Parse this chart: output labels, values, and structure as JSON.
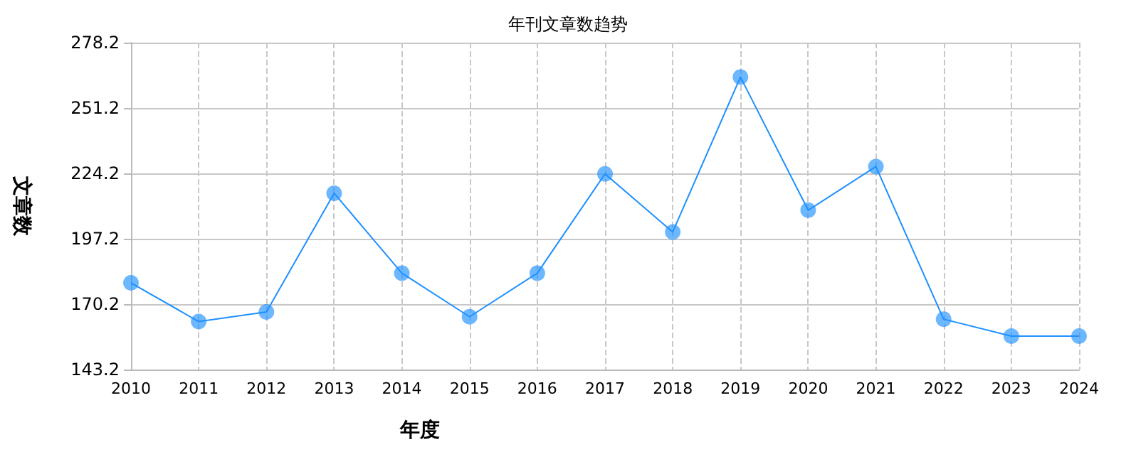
{
  "chart_data": {
    "type": "line",
    "title": "年刊文章数趋势",
    "xlabel": "年度",
    "ylabel": "文章数",
    "categories": [
      "2010",
      "2011",
      "2012",
      "2013",
      "2014",
      "2015",
      "2016",
      "2017",
      "2018",
      "2019",
      "2020",
      "2021",
      "2022",
      "2023",
      "2024"
    ],
    "series": [
      {
        "color": "#1e90ff",
        "values": [
          179,
          163,
          167,
          216,
          183,
          165,
          183,
          224,
          200,
          264,
          209,
          227,
          164,
          157,
          157
        ]
      }
    ],
    "ylim": [
      143.2,
      278.2
    ],
    "yticks": [
      143.2,
      170.2,
      197.2,
      224.2,
      251.2,
      278.2
    ],
    "grid": true,
    "marker": "circle",
    "line_style": "solid"
  }
}
